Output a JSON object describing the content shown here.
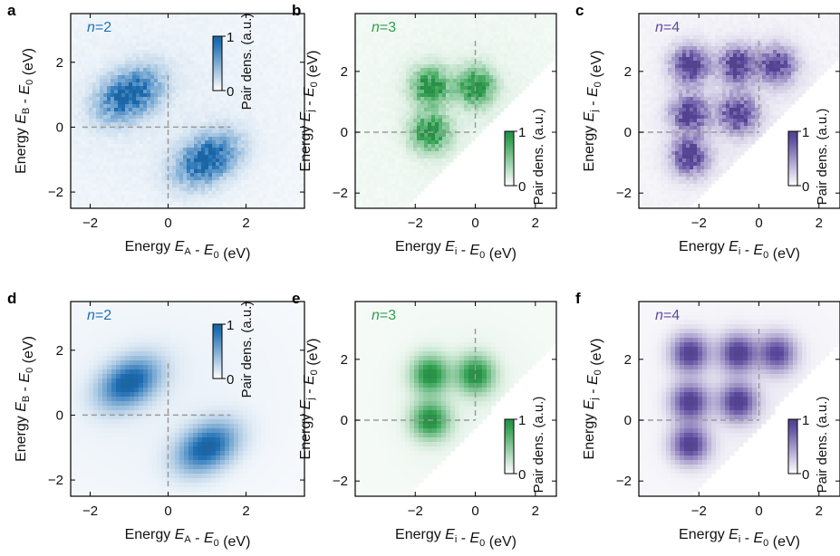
{
  "chart_data": [
    {
      "panel": "a",
      "type": "heatmap",
      "n_label": "n=2",
      "color": "#1f6fb4",
      "style": "noisy",
      "xlabel": "Energy E_A - E_0 (eV)",
      "ylabel": "Energy E_B - E_0 (eV)",
      "xlim": [
        -2.5,
        3.5
      ],
      "ylim": [
        -2.5,
        3.5
      ],
      "xticks": [
        "-2",
        "0",
        "2"
      ],
      "yticks": [
        "-2",
        "0",
        "2"
      ],
      "xtickvals": [
        -2,
        0,
        2
      ],
      "ytickvals": [
        -2,
        0,
        2
      ],
      "cut": false,
      "peaks": [
        {
          "x": -1.0,
          "y": 1.0,
          "amp": 1
        },
        {
          "x": 1.0,
          "y": -1.0,
          "amp": 1
        }
      ],
      "dashed_lines": {
        "x0": 0,
        "y0": 0
      },
      "colorbar": {
        "label": "Pair dens. (a.u.)",
        "min": "0",
        "max": "1",
        "position": "top-right"
      }
    },
    {
      "panel": "b",
      "type": "heatmap",
      "n_label": "n=3",
      "color": "#2e9e4e",
      "style": "noisy",
      "xlabel": "Energy E_i - E_0 (eV)",
      "ylabel": "Energy E_j - E_0 (eV)",
      "xlim": [
        -4,
        2.7
      ],
      "ylim": [
        -2.5,
        3.9
      ],
      "xticks": [
        "-2",
        "0",
        "2"
      ],
      "yticks": [
        "-2",
        "0",
        "2"
      ],
      "xtickvals": [
        -2,
        0,
        2
      ],
      "ytickvals": [
        -2,
        0,
        2
      ],
      "cut": true,
      "peaks": [
        {
          "x": -1.5,
          "y": 1.5,
          "amp": 1
        },
        {
          "x": 0.0,
          "y": 1.5,
          "amp": 1
        },
        {
          "x": -1.5,
          "y": 0.0,
          "amp": 1
        }
      ],
      "dashed_lines": {
        "x0": 0,
        "y0": 0
      },
      "colorbar": {
        "label": "Pair dens. (a.u.)",
        "min": "0",
        "max": "1",
        "position": "lower-right"
      }
    },
    {
      "panel": "c",
      "type": "heatmap",
      "n_label": "n=4",
      "color": "#5c4a9e",
      "style": "noisy",
      "xlabel": "Energy E_i - E_0 (eV)",
      "ylabel": "Energy E_j - E_0 (eV)",
      "xlim": [
        -4,
        2.7
      ],
      "ylim": [
        -2.5,
        3.9
      ],
      "xticks": [
        "-2",
        "0",
        "2"
      ],
      "yticks": [
        "-2",
        "0",
        "2"
      ],
      "xtickvals": [
        -2,
        0,
        2
      ],
      "ytickvals": [
        -2,
        0,
        2
      ],
      "cut": true,
      "peaks": [
        {
          "x": -2.3,
          "y": 2.2,
          "amp": 1
        },
        {
          "x": -0.7,
          "y": 2.2,
          "amp": 1
        },
        {
          "x": 0.6,
          "y": 2.2,
          "amp": 0.9
        },
        {
          "x": -2.3,
          "y": 0.6,
          "amp": 1
        },
        {
          "x": -0.7,
          "y": 0.6,
          "amp": 1
        },
        {
          "x": -2.3,
          "y": -0.8,
          "amp": 1
        }
      ],
      "dashed_lines": {
        "x0": 0,
        "y0": 0
      },
      "colorbar": {
        "label": "Pair dens. (a.u.)",
        "min": "0",
        "max": "1",
        "position": "lower-right"
      }
    },
    {
      "panel": "d",
      "type": "heatmap",
      "n_label": "n=2",
      "color": "#1f6fb4",
      "style": "smooth",
      "xlabel": "Energy E_A - E_0 (eV)",
      "ylabel": "Energy E_B - E_0 (eV)",
      "xlim": [
        -2.5,
        3.5
      ],
      "ylim": [
        -2.5,
        3.5
      ],
      "xticks": [
        "-2",
        "0",
        "2"
      ],
      "yticks": [
        "-2",
        "0",
        "2"
      ],
      "xtickvals": [
        -2,
        0,
        2
      ],
      "ytickvals": [
        -2,
        0,
        2
      ],
      "cut": false,
      "peaks": [
        {
          "x": -1.0,
          "y": 1.0,
          "amp": 1
        },
        {
          "x": 1.0,
          "y": -1.0,
          "amp": 1
        }
      ],
      "dashed_lines": {
        "x0": 0,
        "y0": 0
      },
      "colorbar": {
        "label": "Pair dens. (a.u.)",
        "min": "0",
        "max": "1",
        "position": "top-right"
      }
    },
    {
      "panel": "e",
      "type": "heatmap",
      "n_label": "n=3",
      "color": "#2e9e4e",
      "style": "smooth",
      "xlabel": "Energy E_i - E_0 (eV)",
      "ylabel": "Energy E_j - E_0 (eV)",
      "xlim": [
        -4,
        2.7
      ],
      "ylim": [
        -2.5,
        3.9
      ],
      "xticks": [
        "-2",
        "0",
        "2"
      ],
      "yticks": [
        "-2",
        "0",
        "2"
      ],
      "xtickvals": [
        -2,
        0,
        2
      ],
      "ytickvals": [
        -2,
        0,
        2
      ],
      "cut": true,
      "peaks": [
        {
          "x": -1.5,
          "y": 1.5,
          "amp": 1
        },
        {
          "x": 0.0,
          "y": 1.5,
          "amp": 1
        },
        {
          "x": -1.5,
          "y": 0.0,
          "amp": 1
        }
      ],
      "dashed_lines": {
        "x0": 0,
        "y0": 0
      },
      "colorbar": {
        "label": "Pair dens. (a.u.)",
        "min": "0",
        "max": "1",
        "position": "lower-right"
      }
    },
    {
      "panel": "f",
      "type": "heatmap",
      "n_label": "n=4",
      "color": "#5c4a9e",
      "style": "smooth",
      "xlabel": "Energy E_i - E_0 (eV)",
      "ylabel": "Energy E_j - E_0 (eV)",
      "xlim": [
        -4,
        2.7
      ],
      "ylim": [
        -2.5,
        3.9
      ],
      "xticks": [
        "-2",
        "0",
        "2"
      ],
      "yticks": [
        "-2",
        "0",
        "2"
      ],
      "xtickvals": [
        -2,
        0,
        2
      ],
      "ytickvals": [
        -2,
        0,
        2
      ],
      "cut": true,
      "peaks": [
        {
          "x": -2.3,
          "y": 2.2,
          "amp": 1
        },
        {
          "x": -0.7,
          "y": 2.2,
          "amp": 1
        },
        {
          "x": 0.6,
          "y": 2.2,
          "amp": 0.9
        },
        {
          "x": -2.3,
          "y": 0.6,
          "amp": 1
        },
        {
          "x": -0.7,
          "y": 0.6,
          "amp": 1
        },
        {
          "x": -2.3,
          "y": -0.8,
          "amp": 1
        }
      ],
      "dashed_lines": {
        "x0": 0,
        "y0": 0
      },
      "colorbar": {
        "label": "Pair dens. (a.u.)",
        "min": "0",
        "max": "1",
        "position": "lower-right"
      }
    }
  ]
}
